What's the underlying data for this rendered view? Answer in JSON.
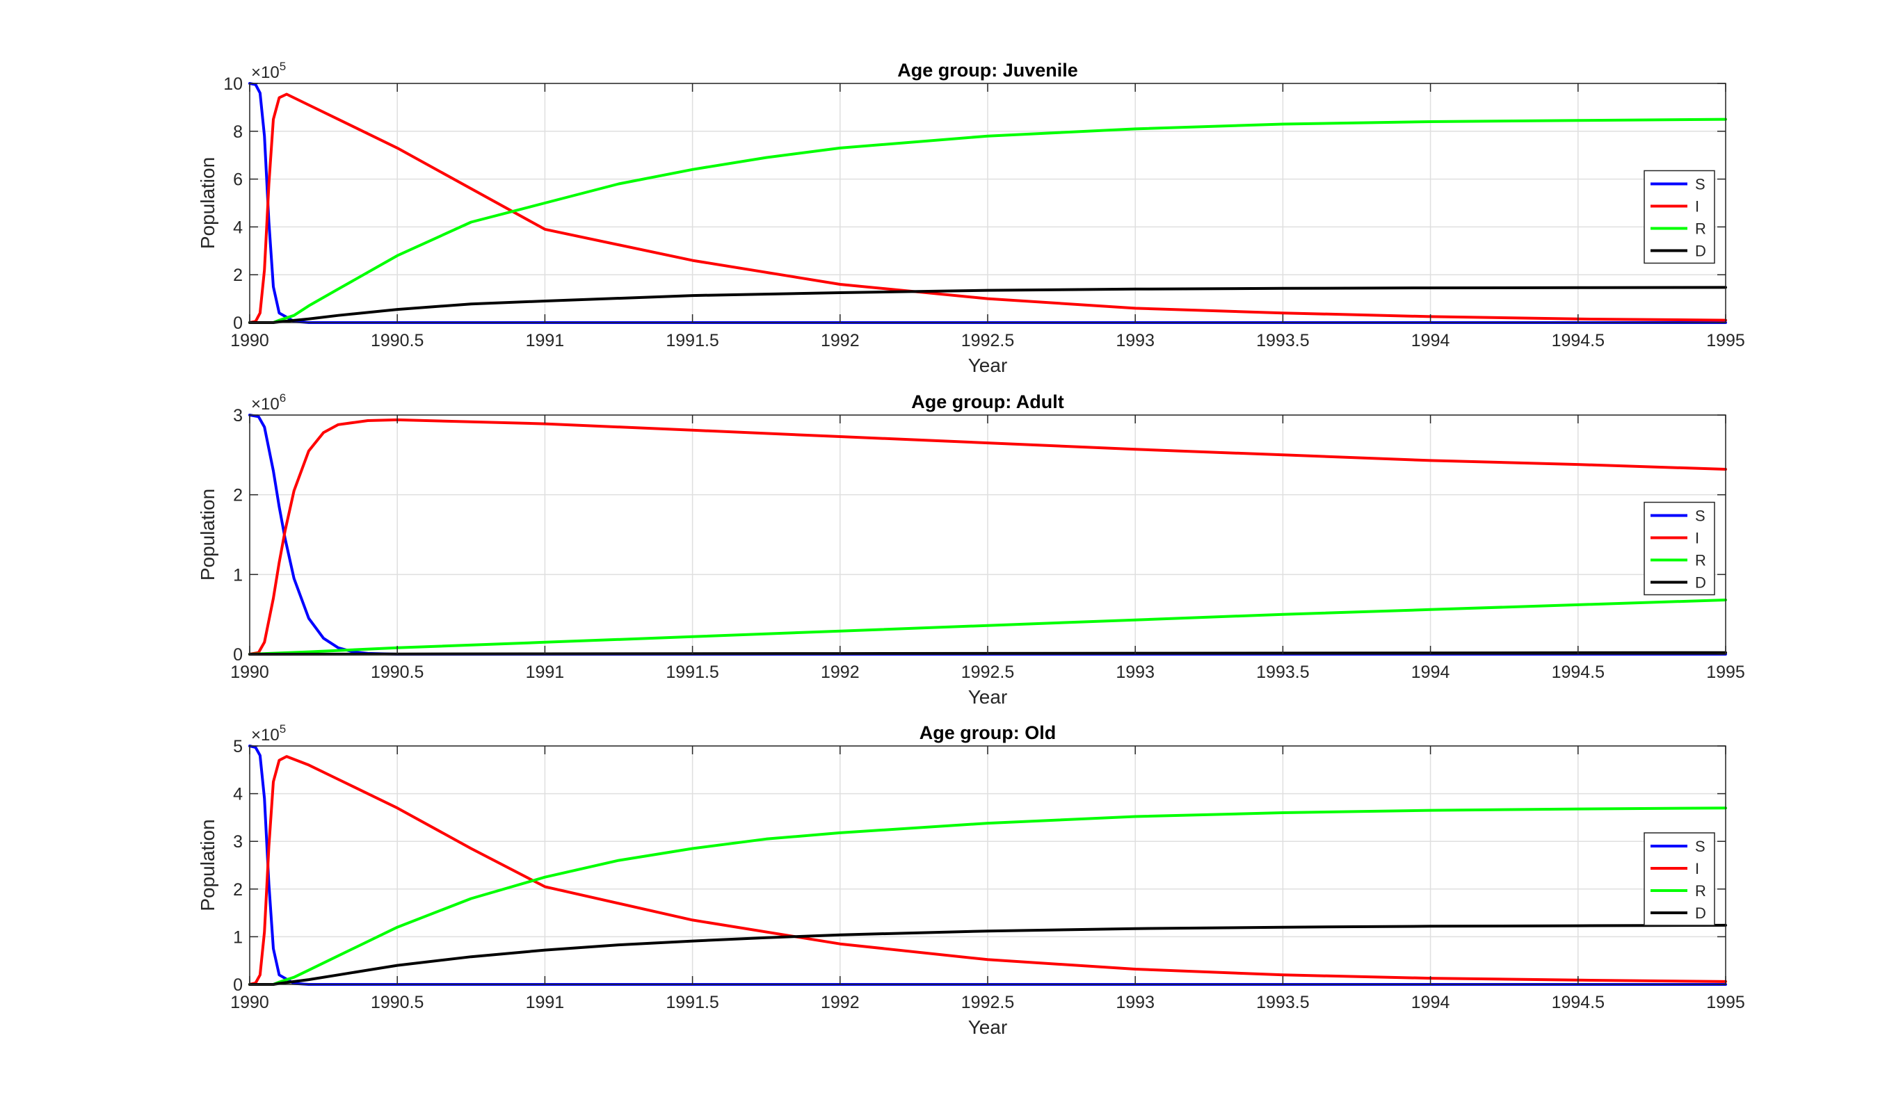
{
  "chart_data": [
    {
      "type": "line",
      "title": "Age group: Juvenile",
      "xlabel": "Year",
      "ylabel": "Population",
      "xlim": [
        1990,
        1995
      ],
      "ylim": [
        0,
        10
      ],
      "y_exponent_label": "×10",
      "y_exponent_power": "5",
      "x_ticks": [
        1990,
        1990.5,
        1991,
        1991.5,
        1992,
        1992.5,
        1993,
        1993.5,
        1994,
        1994.5,
        1995
      ],
      "x_tick_labels": [
        "1990",
        "1990.5",
        "1991",
        "1991.5",
        "1992",
        "1992.5",
        "1993",
        "1993.5",
        "1994",
        "1994.5",
        "1995"
      ],
      "y_ticks": [
        0,
        2,
        4,
        6,
        8,
        10
      ],
      "y_tick_labels": [
        "0",
        "2",
        "4",
        "6",
        "8",
        "10"
      ],
      "grid": true,
      "legend_position": "right",
      "series": [
        {
          "name": "S",
          "color": "#0000ff",
          "x": [
            1990,
            1990.02,
            1990.035,
            1990.05,
            1990.065,
            1990.08,
            1990.1,
            1990.15,
            1990.2,
            1995
          ],
          "y": [
            10,
            9.95,
            9.6,
            7.8,
            4.2,
            1.5,
            0.4,
            0.05,
            0,
            0
          ]
        },
        {
          "name": "I",
          "color": "#ff0000",
          "x": [
            1990,
            1990.02,
            1990.035,
            1990.05,
            1990.065,
            1990.08,
            1990.1,
            1990.125,
            1990.2,
            1990.3,
            1990.5,
            1991,
            1991.5,
            1992,
            1992.5,
            1993,
            1993.5,
            1994,
            1994.5,
            1995
          ],
          "y": [
            0,
            0.05,
            0.4,
            2.2,
            5.8,
            8.5,
            9.4,
            9.55,
            9.1,
            8.5,
            7.3,
            3.9,
            2.6,
            1.6,
            1.0,
            0.6,
            0.4,
            0.25,
            0.15,
            0.1
          ]
        },
        {
          "name": "R",
          "color": "#00ff00",
          "x": [
            1990,
            1990.08,
            1990.1,
            1990.15,
            1990.2,
            1990.3,
            1990.5,
            1990.75,
            1991,
            1991.25,
            1991.5,
            1991.75,
            1992,
            1992.5,
            1993,
            1993.5,
            1994,
            1994.5,
            1995
          ],
          "y": [
            0,
            0,
            0.1,
            0.3,
            0.7,
            1.4,
            2.8,
            4.2,
            5.0,
            5.8,
            6.4,
            6.9,
            7.3,
            7.8,
            8.1,
            8.3,
            8.4,
            8.45,
            8.5
          ]
        },
        {
          "name": "D",
          "color": "#000000",
          "x": [
            1990,
            1990.08,
            1990.1,
            1990.2,
            1990.3,
            1990.5,
            1990.75,
            1991,
            1991.5,
            1992,
            1992.5,
            1993,
            1993.5,
            1994,
            1994.5,
            1995
          ],
          "y": [
            0,
            0,
            0.03,
            0.15,
            0.3,
            0.55,
            0.78,
            0.9,
            1.13,
            1.25,
            1.35,
            1.4,
            1.43,
            1.45,
            1.46,
            1.47
          ]
        }
      ]
    },
    {
      "type": "line",
      "title": "Age group: Adult",
      "xlabel": "Year",
      "ylabel": "Population",
      "xlim": [
        1990,
        1995
      ],
      "ylim": [
        0,
        3
      ],
      "y_exponent_label": "×10",
      "y_exponent_power": "6",
      "x_ticks": [
        1990,
        1990.5,
        1991,
        1991.5,
        1992,
        1992.5,
        1993,
        1993.5,
        1994,
        1994.5,
        1995
      ],
      "x_tick_labels": [
        "1990",
        "1990.5",
        "1991",
        "1991.5",
        "1992",
        "1992.5",
        "1993",
        "1993.5",
        "1994",
        "1994.5",
        "1995"
      ],
      "y_ticks": [
        0,
        1,
        2,
        3
      ],
      "y_tick_labels": [
        "0",
        "1",
        "2",
        "3"
      ],
      "grid": true,
      "legend_position": "right",
      "series": [
        {
          "name": "S",
          "color": "#0000ff",
          "x": [
            1990,
            1990.03,
            1990.05,
            1990.08,
            1990.1,
            1990.12,
            1990.15,
            1990.2,
            1990.25,
            1990.3,
            1990.35,
            1990.4,
            1990.5,
            1995
          ],
          "y": [
            3.0,
            2.98,
            2.85,
            2.3,
            1.85,
            1.45,
            0.95,
            0.45,
            0.2,
            0.08,
            0.03,
            0.01,
            0,
            0
          ]
        },
        {
          "name": "I",
          "color": "#ff0000",
          "x": [
            1990,
            1990.03,
            1990.05,
            1990.08,
            1990.1,
            1990.12,
            1990.15,
            1990.2,
            1990.25,
            1990.3,
            1990.4,
            1990.5,
            1991,
            1991.5,
            1992,
            1992.5,
            1993,
            1993.5,
            1994,
            1994.5,
            1995
          ],
          "y": [
            0,
            0.02,
            0.15,
            0.7,
            1.15,
            1.55,
            2.05,
            2.55,
            2.78,
            2.88,
            2.93,
            2.94,
            2.89,
            2.81,
            2.73,
            2.65,
            2.57,
            2.5,
            2.43,
            2.38,
            2.32
          ]
        },
        {
          "name": "R",
          "color": "#00ff00",
          "x": [
            1990,
            1990.2,
            1990.5,
            1991,
            1991.5,
            1992,
            1992.5,
            1993,
            1993.5,
            1994,
            1994.5,
            1995
          ],
          "y": [
            0,
            0.03,
            0.08,
            0.15,
            0.22,
            0.29,
            0.36,
            0.43,
            0.5,
            0.56,
            0.62,
            0.68
          ]
        },
        {
          "name": "D",
          "color": "#000000",
          "x": [
            1990,
            1991,
            1992,
            1993,
            1994,
            1995
          ],
          "y": [
            0,
            0.004,
            0.008,
            0.012,
            0.016,
            0.02
          ]
        }
      ]
    },
    {
      "type": "line",
      "title": "Age group: Old",
      "xlabel": "Year",
      "ylabel": "Population",
      "xlim": [
        1990,
        1995
      ],
      "ylim": [
        0,
        5
      ],
      "y_exponent_label": "×10",
      "y_exponent_power": "5",
      "x_ticks": [
        1990,
        1990.5,
        1991,
        1991.5,
        1992,
        1992.5,
        1993,
        1993.5,
        1994,
        1994.5,
        1995
      ],
      "x_tick_labels": [
        "1990",
        "1990.5",
        "1991",
        "1991.5",
        "1992",
        "1992.5",
        "1993",
        "1993.5",
        "1994",
        "1994.5",
        "1995"
      ],
      "y_ticks": [
        0,
        1,
        2,
        3,
        4,
        5
      ],
      "y_tick_labels": [
        "0",
        "1",
        "2",
        "3",
        "4",
        "5"
      ],
      "grid": true,
      "legend_position": "right",
      "series": [
        {
          "name": "S",
          "color": "#0000ff",
          "x": [
            1990,
            1990.02,
            1990.035,
            1990.05,
            1990.065,
            1990.08,
            1990.1,
            1990.15,
            1990.2,
            1995
          ],
          "y": [
            5,
            4.97,
            4.8,
            3.9,
            2.1,
            0.75,
            0.2,
            0.02,
            0,
            0
          ]
        },
        {
          "name": "I",
          "color": "#ff0000",
          "x": [
            1990,
            1990.02,
            1990.035,
            1990.05,
            1990.065,
            1990.08,
            1990.1,
            1990.125,
            1990.2,
            1990.3,
            1990.5,
            1990.75,
            1991,
            1991.5,
            1992,
            1992.5,
            1993,
            1993.5,
            1994,
            1994.5,
            1995
          ],
          "y": [
            0,
            0.03,
            0.2,
            1.1,
            2.9,
            4.25,
            4.7,
            4.78,
            4.6,
            4.3,
            3.7,
            2.85,
            2.05,
            1.35,
            0.85,
            0.52,
            0.32,
            0.2,
            0.13,
            0.09,
            0.06
          ]
        },
        {
          "name": "R",
          "color": "#00ff00",
          "x": [
            1990,
            1990.08,
            1990.1,
            1990.15,
            1990.2,
            1990.3,
            1990.5,
            1990.75,
            1991,
            1991.25,
            1991.5,
            1991.75,
            1992,
            1992.5,
            1993,
            1993.5,
            1994,
            1994.5,
            1995
          ],
          "y": [
            0,
            0,
            0.05,
            0.15,
            0.3,
            0.6,
            1.2,
            1.8,
            2.25,
            2.6,
            2.85,
            3.05,
            3.18,
            3.38,
            3.52,
            3.6,
            3.65,
            3.68,
            3.7
          ]
        },
        {
          "name": "D",
          "color": "#000000",
          "x": [
            1990,
            1990.08,
            1990.1,
            1990.2,
            1990.3,
            1990.5,
            1990.75,
            1991,
            1991.25,
            1991.5,
            1991.75,
            1992,
            1992.5,
            1993,
            1993.5,
            1994,
            1994.5,
            1995
          ],
          "y": [
            0,
            0,
            0.02,
            0.1,
            0.2,
            0.4,
            0.58,
            0.72,
            0.83,
            0.91,
            0.98,
            1.04,
            1.12,
            1.17,
            1.2,
            1.22,
            1.23,
            1.24
          ]
        }
      ]
    }
  ]
}
